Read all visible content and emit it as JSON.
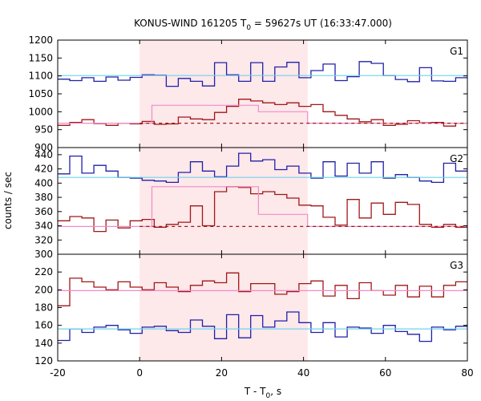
{
  "chart_data": {
    "type": "line",
    "title": "KONUS-WIND 161205 T₀ = 59627s UT (16:33:47.000)",
    "title_parts": {
      "pre": "KONUS-WIND 161205 T",
      "sub": "0",
      "post": " = 59627s UT (16:33:47.000)"
    },
    "xlabel": "T - T₀, s",
    "xlabel_parts": {
      "pre": "T - T",
      "sub": "0",
      "post": ", s"
    },
    "ylabel": "counts / sec",
    "xlim": [
      -20,
      80
    ],
    "x_ticks": [
      "-20",
      "0",
      "20",
      "40",
      "60",
      "80"
    ],
    "x_tick_values": [
      -20,
      0,
      20,
      40,
      60,
      80
    ],
    "highlight_interval": [
      0,
      41
    ],
    "grid": false,
    "colors": {
      "blue": "#2020a8",
      "red": "#a01818",
      "cyan": "#6fd4ec",
      "pink": "#f08cc8",
      "highlight": "#fde8ea"
    },
    "step_width": 2.944,
    "step_x_start": -20,
    "panels": [
      {
        "label": "G1",
        "ylim": [
          900,
          1200
        ],
        "y_ticks": [
          "900",
          "950",
          "1000",
          "1050",
          "1100",
          "1150",
          "1200"
        ],
        "y_tick_values": [
          900,
          950,
          1000,
          1050,
          1100,
          1150,
          1200
        ],
        "series": [
          {
            "color": "blue",
            "values": [
              1091,
              1087,
              1095,
              1085,
              1097,
              1088,
              1096,
              1103,
              1102,
              1071,
              1093,
              1085,
              1072,
              1137,
              1103,
              1085,
              1137,
              1085,
              1125,
              1138,
              1095,
              1115,
              1133,
              1087,
              1098,
              1140,
              1135,
              1101,
              1090,
              1084,
              1123,
              1086,
              1085,
              1095,
              1107,
              1110,
              1100,
              1090,
              1089,
              1096,
              1099,
              1101,
              1101,
              1119,
              1099,
              1087,
              1100,
              1091,
              1096,
              1091,
              1088,
              1101,
              1095,
              1097,
              1099,
              1102,
              1125,
              1103,
              1096,
              1105,
              1102,
              1100,
              1103,
              1114,
              1102,
              1107,
              1102,
              1117,
              1102,
              1094,
              1102,
              1116,
              1107,
              1093,
              1105,
              1099
            ]
          },
          {
            "color": "red",
            "values": [
              962,
              970,
              978,
              967,
              962,
              968,
              966,
              973,
              965,
              966,
              985,
              980,
              978,
              998,
              1015,
              1035,
              1030,
              1025,
              1020,
              1025,
              1015,
              1020,
              1000,
              990,
              980,
              972,
              978,
              962,
              965,
              975,
              969,
              970,
              960,
              968,
              970,
              962,
              948,
              978,
              968,
              951,
              975,
              974,
              976,
              947,
              965,
              975,
              960,
              976,
              962,
              945,
              967,
              983,
              964,
              942,
              975,
              955,
              964,
              968,
              973
            ]
          },
          {
            "color": "cyan",
            "style": "solid",
            "x": [
              -20,
              80
            ],
            "values": [
              1101,
              1101
            ]
          },
          {
            "color": "pink",
            "style": "solid",
            "x": [
              -20,
              0,
              0,
              3,
              3,
              16,
              16,
              29,
              29,
              41,
              41,
              80
            ],
            "values": [
              968,
              968,
              968,
              968,
              1018,
              1018,
              1018,
              1018,
              1000,
              1000,
              968,
              968
            ]
          },
          {
            "color": "red",
            "style": "dashed",
            "x": [
              0,
              80
            ],
            "values": [
              968,
              968
            ]
          }
        ]
      },
      {
        "label": "G2",
        "ylim": [
          300,
          450
        ],
        "y_ticks": [
          "300",
          "320",
          "340",
          "360",
          "380",
          "400",
          "420",
          "440"
        ],
        "y_tick_values": [
          300,
          320,
          340,
          360,
          380,
          400,
          420,
          440
        ],
        "series": [
          {
            "color": "blue",
            "values": [
              413,
              438,
              414,
              425,
              417,
              408,
              407,
              404,
              403,
              401,
              415,
              430,
              417,
              409,
              424,
              442,
              431,
              433,
              419,
              424,
              414,
              407,
              430,
              410,
              428,
              414,
              430,
              407,
              412,
              408,
              403,
              401,
              428,
              417,
              425,
              435,
              417,
              404,
              418,
              425,
              427,
              432,
              414,
              435,
              400,
              398,
              402,
              410,
              404,
              402,
              410,
              428,
              415,
              406,
              398,
              412,
              412,
              410,
              406,
              405,
              403,
              403,
              400,
              402,
              398,
              396,
              395,
              394,
              393,
              392
            ]
          },
          {
            "color": "red",
            "values": [
              347,
              353,
              351,
              332,
              348,
              337,
              347,
              349,
              338,
              342,
              345,
              368,
              340,
              388,
              395,
              394,
              385,
              388,
              384,
              379,
              369,
              368,
              352,
              341,
              377,
              351,
              372,
              356,
              373,
              370,
              342,
              338,
              342,
              338,
              333,
              352,
              350,
              328,
              343,
              352,
              352,
              332,
              339,
              331,
              348,
              330,
              334,
              322,
              341,
              331,
              343,
              313,
              323,
              312
            ]
          },
          {
            "color": "cyan",
            "style": "solid",
            "x": [
              -20,
              80
            ],
            "values": [
              408,
              408
            ]
          },
          {
            "color": "pink",
            "style": "solid",
            "x": [
              -20,
              0,
              0,
              3,
              3,
              16,
              16,
              29,
              29,
              41,
              41,
              80
            ],
            "values": [
              339,
              339,
              339,
              339,
              395,
              395,
              395,
              395,
              356,
              356,
              339,
              339
            ]
          },
          {
            "color": "red",
            "style": "dashed",
            "x": [
              0,
              80
            ],
            "values": [
              339,
              339
            ]
          }
        ]
      },
      {
        "label": "G3",
        "ylim": [
          120,
          240
        ],
        "y_ticks": [
          "120",
          "140",
          "160",
          "180",
          "200",
          "220"
        ],
        "y_tick_values": [
          120,
          140,
          160,
          180,
          200,
          220
        ],
        "series": [
          {
            "color": "red",
            "values": [
              182,
              213,
              209,
              203,
              200,
              209,
              203,
              200,
              208,
              203,
              198,
              205,
              210,
              208,
              219,
              198,
              207,
              207,
              195,
              198,
              207,
              210,
              193,
              205,
              190,
              208,
              199,
              194,
              205,
              192,
              204,
              192,
              205,
              209,
              208,
              199,
              194,
              188,
              196,
              199,
              202,
              204,
              196,
              200,
              196,
              188,
              198,
              192,
              195,
              198,
              199,
              198,
              196,
              203
            ]
          },
          {
            "color": "blue",
            "values": [
              143,
              156,
              152,
              158,
              160,
              155,
              151,
              158,
              159,
              154,
              152,
              166,
              159,
              145,
              172,
              146,
              171,
              158,
              165,
              175,
              163,
              152,
              163,
              147,
              158,
              157,
              151,
              160,
              153,
              150,
              142,
              158,
              155,
              159,
              152,
              149,
              157,
              150,
              143,
              158,
              153,
              157,
              150,
              171,
              147,
              164,
              148,
              140,
              152,
              157,
              153,
              157
            ]
          },
          {
            "color": "cyan",
            "style": "solid",
            "x": [
              -20,
              80
            ],
            "values": [
              156,
              156
            ]
          },
          {
            "color": "pink",
            "style": "solid",
            "x": [
              -20,
              80
            ],
            "values": [
              199,
              199
            ]
          }
        ]
      }
    ]
  }
}
